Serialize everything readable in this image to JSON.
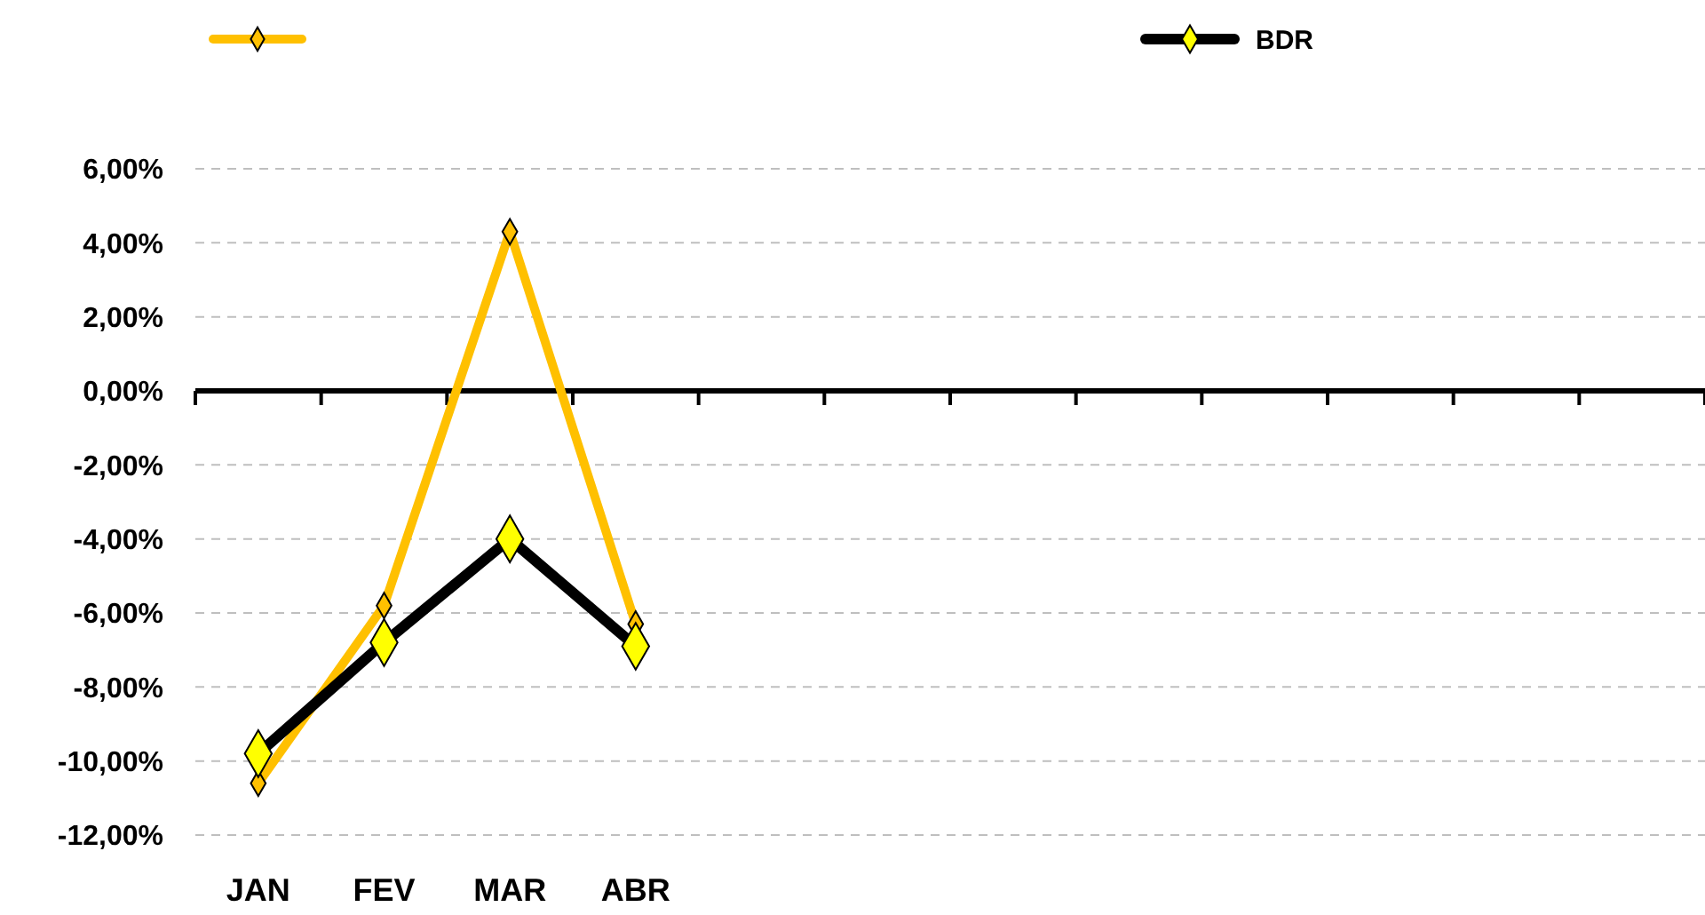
{
  "chart_data": {
    "type": "line",
    "categories": [
      "JAN",
      "FEV",
      "MAR",
      "ABR",
      null,
      null,
      null,
      null,
      null,
      null,
      null,
      null
    ],
    "series": [
      {
        "color": "#ffc000",
        "values": [
          -10.6,
          -5.8,
          4.3,
          -6.3,
          null,
          null,
          null,
          null,
          null,
          null,
          null,
          null
        ]
      },
      {
        "name": "BDR",
        "color": "#000000",
        "values": [
          -9.8,
          -6.8,
          -4.0,
          -6.9,
          null,
          null,
          null,
          null,
          null,
          null,
          null,
          null
        ]
      }
    ],
    "ylim": [
      -12,
      6
    ],
    "yticks": [
      {
        "value": -12,
        "label": "-12,00%"
      },
      {
        "value": -10,
        "label": "-10,00%"
      },
      {
        "value": -8,
        "label": "-8,00%"
      },
      {
        "value": -6,
        "label": "-6,00%"
      },
      {
        "value": -4,
        "label": "-4,00%"
      },
      {
        "value": -2,
        "label": "-2,00%"
      },
      {
        "value": 0,
        "label": "0,00%"
      },
      {
        "value": 2,
        "label": "2,00%"
      },
      {
        "value": 4,
        "label": "4,00%"
      },
      {
        "value": 6,
        "label": "6,00%"
      }
    ],
    "grid": "y",
    "legend": "top",
    "marker": "diamond",
    "line_style": "solid"
  }
}
